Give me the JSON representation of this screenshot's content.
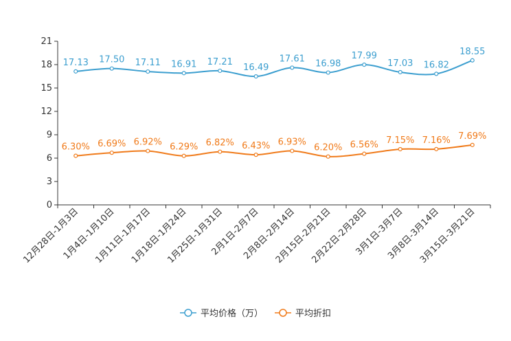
{
  "chart_data": {
    "type": "line",
    "title": "",
    "categories": [
      "12月28日-1月3日",
      "1月4日-1月10日",
      "1月11日-1月17日",
      "1月18日-1月24日",
      "1月25日-1月31日",
      "2月1日-2月7日",
      "2月8日-2月14日",
      "2月15日-2月21日",
      "2月22日-2月28日",
      "3月1日-3月7日",
      "3月8日-3月14日",
      "3月15日-3月21日"
    ],
    "ylim": [
      0,
      21
    ],
    "yticks": [
      0,
      3,
      6,
      9,
      12,
      15,
      18,
      21
    ],
    "series": [
      {
        "name": "平均价格（万）",
        "color": "#3b9ecf",
        "values": [
          17.13,
          17.5,
          17.11,
          16.91,
          17.21,
          16.49,
          17.61,
          16.98,
          17.99,
          17.03,
          16.82,
          18.55
        ],
        "labels": [
          "17.13",
          "17.50",
          "17.11",
          "16.91",
          "17.21",
          "16.49",
          "17.61",
          "16.98",
          "17.99",
          "17.03",
          "16.82",
          "18.55"
        ]
      },
      {
        "name": "平均折扣",
        "color": "#f07a19",
        "values": [
          6.3,
          6.69,
          6.92,
          6.29,
          6.82,
          6.43,
          6.93,
          6.2,
          6.56,
          7.15,
          7.16,
          7.69
        ],
        "labels": [
          "6.30%",
          "6.69%",
          "6.92%",
          "6.29%",
          "6.82%",
          "6.43%",
          "6.93%",
          "6.20%",
          "6.56%",
          "7.15%",
          "7.16%",
          "7.69%"
        ]
      }
    ],
    "legend_position": "bottom-center"
  }
}
